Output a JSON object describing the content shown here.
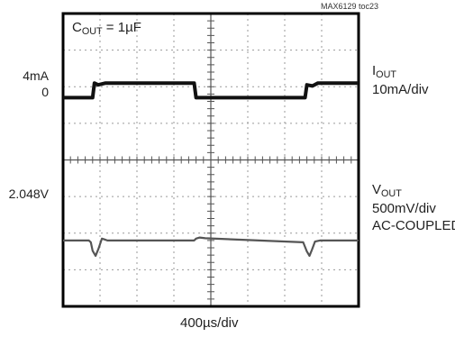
{
  "figure_id": "MAX6129 toc23",
  "chart_data": {
    "type": "line",
    "title": "",
    "annotation": {
      "main": "C",
      "sub": "OUT",
      "rest": " = 1µF"
    },
    "xlabel": "400µs/div",
    "x_divisions": 8,
    "y_divisions": 8,
    "grid": true,
    "x_range": [
      0,
      8
    ],
    "series": [
      {
        "name_main": "I",
        "name_sub": "OUT",
        "scale": "10mA/div",
        "left_labels": [
          "4mA",
          "0"
        ],
        "points": [
          [
            0,
            0
          ],
          [
            0.8,
            0
          ],
          [
            0.85,
            0.4
          ],
          [
            0.95,
            0.35
          ],
          [
            1.15,
            0.4
          ],
          [
            3.55,
            0.4
          ],
          [
            3.6,
            0
          ],
          [
            6.55,
            0
          ],
          [
            6.6,
            0.35
          ],
          [
            6.75,
            0.32
          ],
          [
            6.9,
            0.4
          ],
          [
            8,
            0.4
          ]
        ]
      },
      {
        "name_main": "V",
        "name_sub": "OUT",
        "scale": "500mV/div",
        "coupling": "AC-COUPLED",
        "left_labels": [
          "2.048V"
        ],
        "points": [
          [
            0,
            0
          ],
          [
            0.7,
            0
          ],
          [
            0.75,
            -0.05
          ],
          [
            0.8,
            -0.28
          ],
          [
            0.88,
            -0.42
          ],
          [
            0.96,
            -0.22
          ],
          [
            1.05,
            0.05
          ],
          [
            1.12,
            0.03
          ],
          [
            1.2,
            0
          ],
          [
            3.55,
            0
          ],
          [
            3.6,
            0.05
          ],
          [
            3.7,
            0.08
          ],
          [
            3.85,
            0.06
          ],
          [
            6.5,
            -0.05
          ],
          [
            6.6,
            -0.3
          ],
          [
            6.67,
            -0.42
          ],
          [
            6.74,
            -0.25
          ],
          [
            6.82,
            -0.03
          ],
          [
            6.95,
            0
          ],
          [
            8,
            0
          ]
        ]
      }
    ]
  }
}
